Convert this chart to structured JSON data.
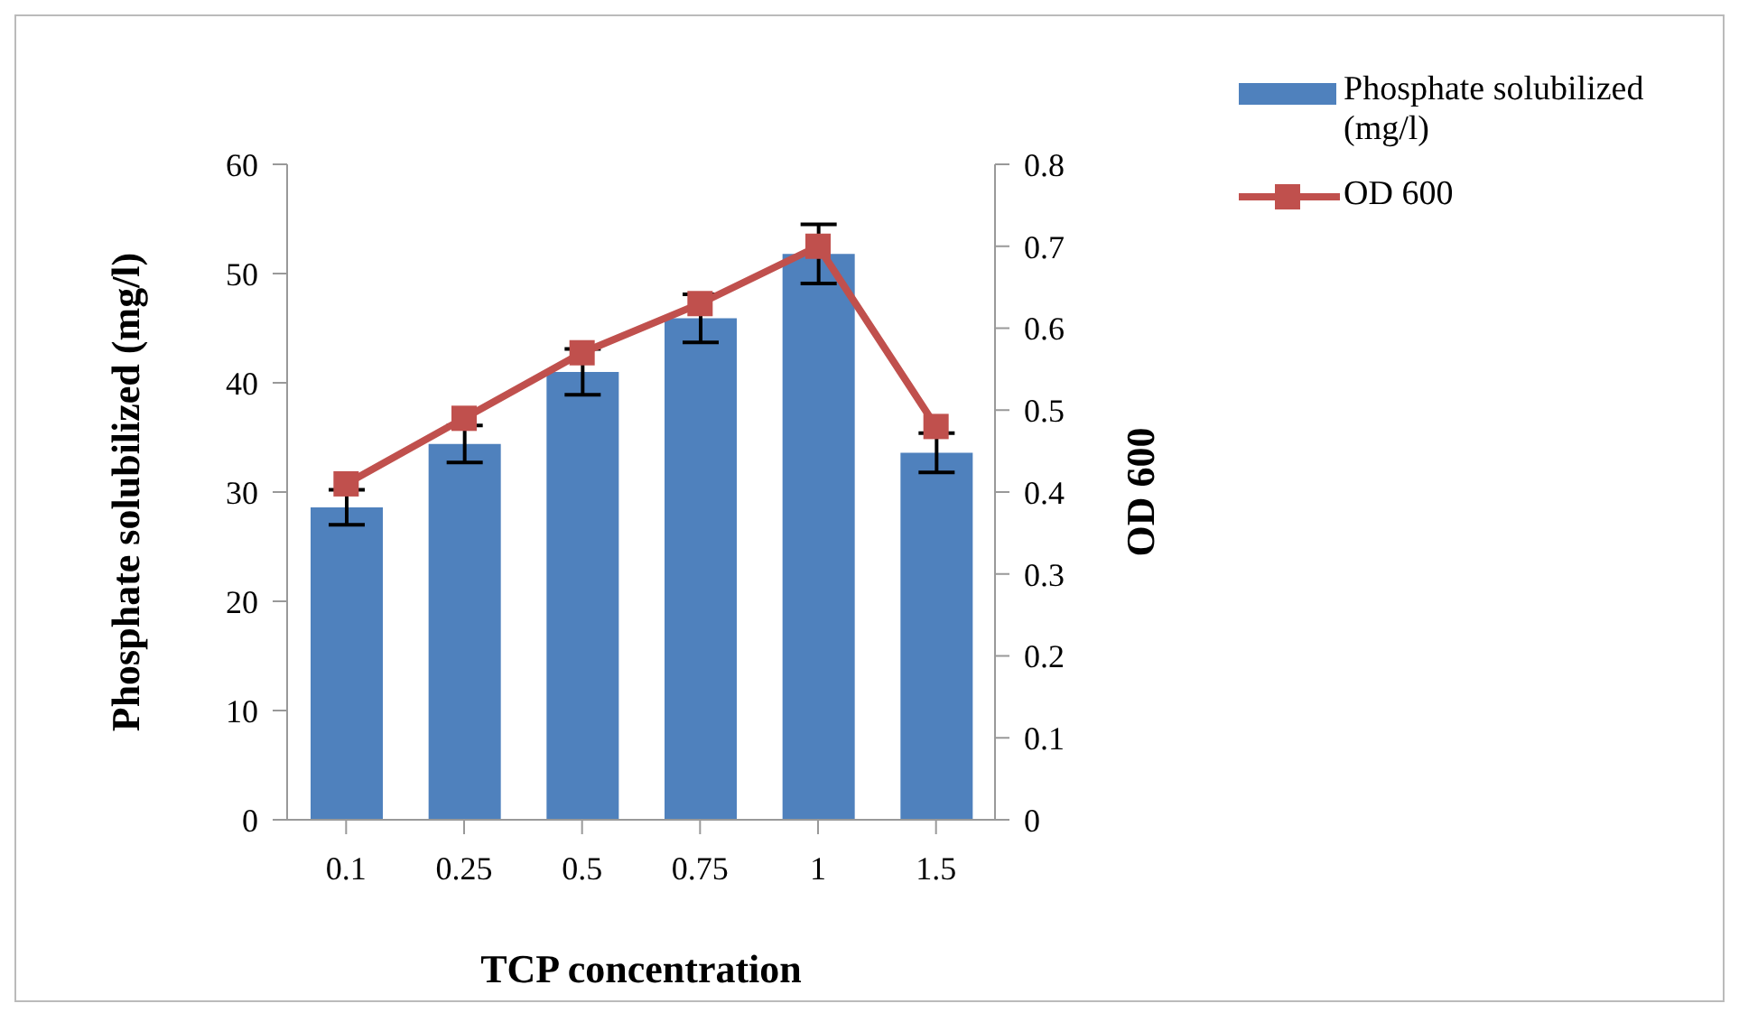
{
  "chart_data": {
    "type": "bar",
    "xlabel": "TCP concentration",
    "ylabel": "Phosphate solubilized (mg/l)",
    "y2label": "OD 600",
    "categories": [
      "0.1",
      "0.25",
      "0.5",
      "0.75",
      "1",
      "1.5"
    ],
    "series": [
      {
        "name": "Phosphate solubilized (mg/l)",
        "color": "#4f81bd",
        "values": [
          28.6,
          34.4,
          41.0,
          45.9,
          51.8,
          33.6
        ],
        "errors": [
          1.6,
          1.7,
          2.1,
          2.2,
          2.7,
          1.8
        ]
      },
      {
        "name": "OD 600",
        "type": "line",
        "axis": "y2",
        "color": "#c0504d",
        "values": [
          0.41,
          0.49,
          0.57,
          0.63,
          0.7,
          0.48
        ]
      }
    ],
    "ylim": [
      0,
      60
    ],
    "yticks": [
      0,
      10,
      20,
      30,
      40,
      50,
      60
    ],
    "y2lim": [
      0,
      0.8
    ],
    "y2ticks": [
      0,
      0.1,
      0.2,
      0.3,
      0.4,
      0.5,
      0.6,
      0.7,
      0.8
    ],
    "grid": false,
    "legend": "top right",
    "marker": "square",
    "line_style": "solid"
  }
}
